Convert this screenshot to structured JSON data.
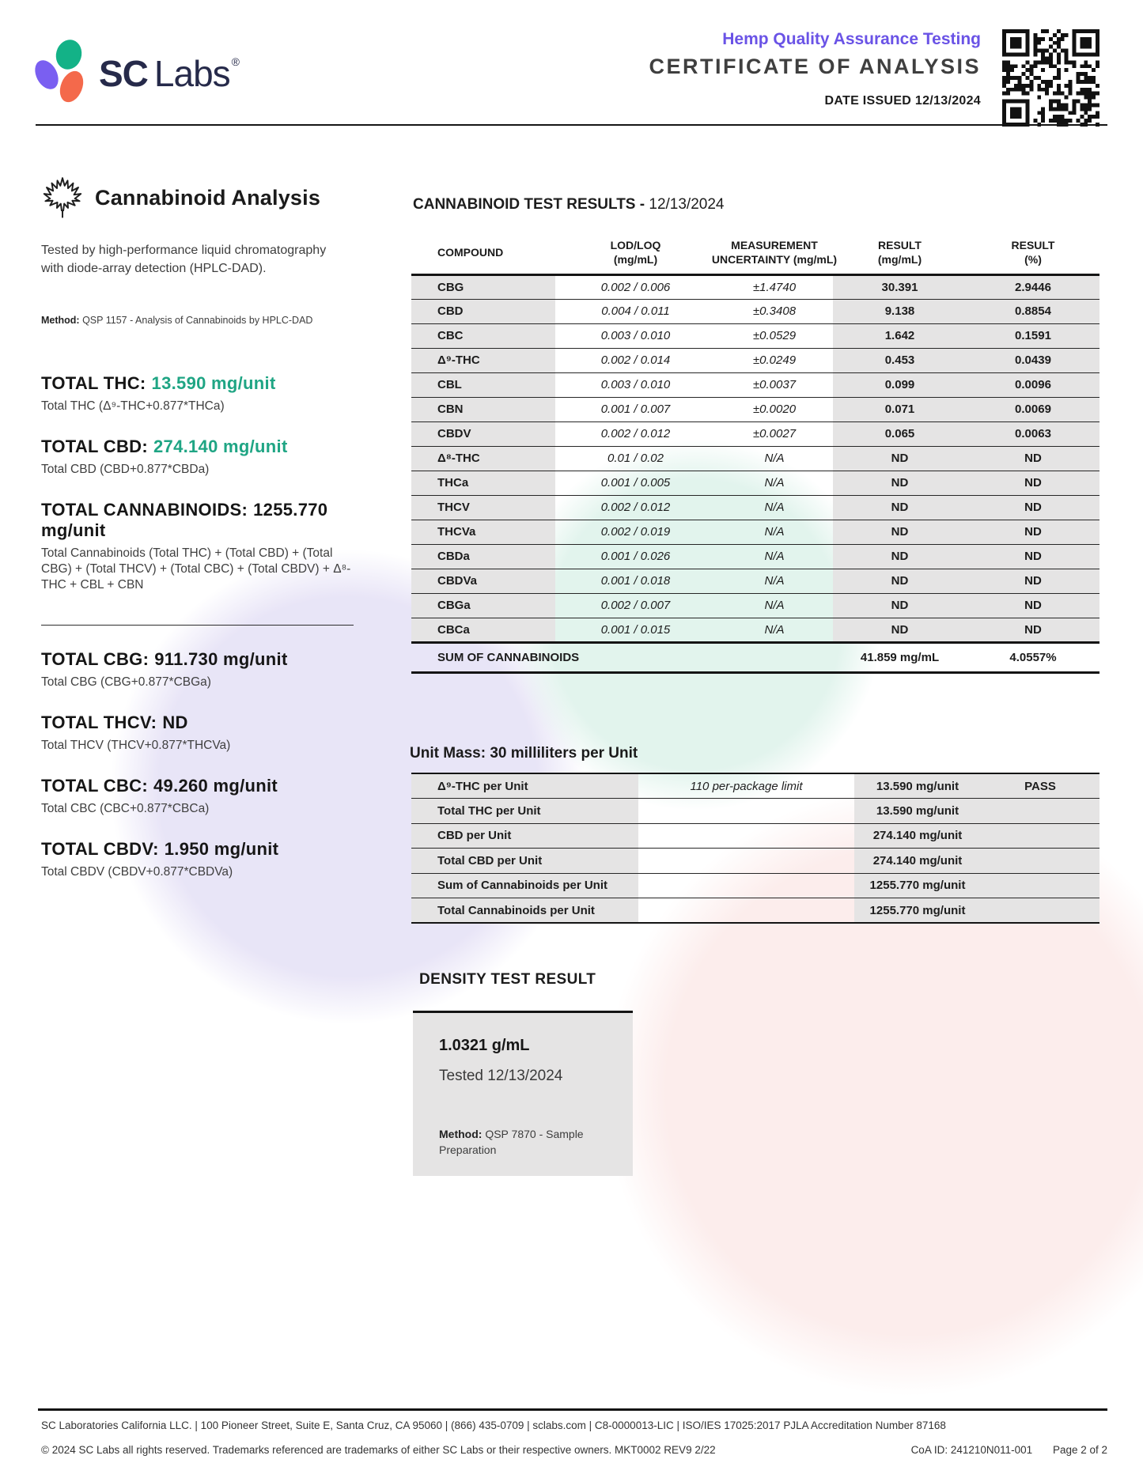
{
  "colors": {
    "accent_teal": "#1FA584",
    "header_purple": "#6A53E6",
    "logo_navy": "#262A4A",
    "logo_blob_purple": "#7A5FF1",
    "logo_blob_green": "#13B287",
    "logo_blob_coral": "#F4694B",
    "table_gray": "#E5E4E4"
  },
  "header": {
    "brand_sc": "SC",
    "brand_labs": "Labs",
    "brand_reg": "®",
    "program": "Hemp Quality Assurance Testing",
    "title": "CERTIFICATE OF ANALYSIS",
    "date_issued": "DATE ISSUED 12/13/2024"
  },
  "analysis": {
    "section_title": "Cannabinoid Analysis",
    "description": "Tested by high-performance liquid chromatography with diode-array detection (HPLC-DAD).",
    "method_label": "Method:",
    "method_text": " QSP 1157 - Analysis of Cannabinoids by HPLC-DAD",
    "totals_primary": [
      {
        "label": "TOTAL THC:",
        "value": "13.590 mg/unit",
        "accent": true,
        "formula": "Total THC (Δ⁹-THC+0.877*THCa)"
      },
      {
        "label": "TOTAL CBD:",
        "value": "274.140 mg/unit",
        "accent": true,
        "formula": "Total CBD (CBD+0.877*CBDa)"
      },
      {
        "label": "TOTAL CANNABINOIDS:",
        "value": "1255.770 mg/unit",
        "accent": false,
        "formula": "Total Cannabinoids (Total THC) + (Total CBD) + (Total CBG) + (Total THCV) + (Total CBC) + (Total CBDV) + Δ⁸-THC + CBL + CBN"
      }
    ],
    "totals_secondary": [
      {
        "label": "TOTAL CBG:",
        "value": "911.730 mg/unit",
        "accent": false,
        "formula": "Total CBG (CBG+0.877*CBGa)"
      },
      {
        "label": "TOTAL THCV:",
        "value": "ND",
        "accent": false,
        "formula": "Total THCV (THCV+0.877*THCVa)"
      },
      {
        "label": "TOTAL CBC:",
        "value": "49.260 mg/unit",
        "accent": false,
        "formula": "Total CBC (CBC+0.877*CBCa)"
      },
      {
        "label": "TOTAL CBDV:",
        "value": "1.950 mg/unit",
        "accent": false,
        "formula": "Total CBDV (CBDV+0.877*CBDVa)"
      }
    ]
  },
  "results": {
    "title": "CANNABINOID TEST RESULTS -",
    "date": " 12/13/2024",
    "columns": [
      "COMPOUND",
      "LOD/LOQ\n(mg/mL)",
      "MEASUREMENT\nUNCERTAINTY (mg/mL)",
      "RESULT\n(mg/mL)",
      "RESULT\n(%)"
    ],
    "rows": [
      {
        "compound": "CBG",
        "lod_loq": "0.002 / 0.006",
        "uncertainty": "±1.4740",
        "result_mg": "30.391",
        "result_pct": "2.9446"
      },
      {
        "compound": "CBD",
        "lod_loq": "0.004 / 0.011",
        "uncertainty": "±0.3408",
        "result_mg": "9.138",
        "result_pct": "0.8854"
      },
      {
        "compound": "CBC",
        "lod_loq": "0.003 / 0.010",
        "uncertainty": "±0.0529",
        "result_mg": "1.642",
        "result_pct": "0.1591"
      },
      {
        "compound": "Δ⁹-THC",
        "lod_loq": "0.002 / 0.014",
        "uncertainty": "±0.0249",
        "result_mg": "0.453",
        "result_pct": "0.0439"
      },
      {
        "compound": "CBL",
        "lod_loq": "0.003 / 0.010",
        "uncertainty": "±0.0037",
        "result_mg": "0.099",
        "result_pct": "0.0096"
      },
      {
        "compound": "CBN",
        "lod_loq": "0.001 / 0.007",
        "uncertainty": "±0.0020",
        "result_mg": "0.071",
        "result_pct": "0.0069"
      },
      {
        "compound": "CBDV",
        "lod_loq": "0.002 / 0.012",
        "uncertainty": "±0.0027",
        "result_mg": "0.065",
        "result_pct": "0.0063"
      },
      {
        "compound": "Δ⁸-THC",
        "lod_loq": "0.01 / 0.02",
        "uncertainty": "N/A",
        "result_mg": "ND",
        "result_pct": "ND"
      },
      {
        "compound": "THCa",
        "lod_loq": "0.001 / 0.005",
        "uncertainty": "N/A",
        "result_mg": "ND",
        "result_pct": "ND"
      },
      {
        "compound": "THCV",
        "lod_loq": "0.002 / 0.012",
        "uncertainty": "N/A",
        "result_mg": "ND",
        "result_pct": "ND"
      },
      {
        "compound": "THCVa",
        "lod_loq": "0.002 / 0.019",
        "uncertainty": "N/A",
        "result_mg": "ND",
        "result_pct": "ND"
      },
      {
        "compound": "CBDa",
        "lod_loq": "0.001 / 0.026",
        "uncertainty": "N/A",
        "result_mg": "ND",
        "result_pct": "ND"
      },
      {
        "compound": "CBDVa",
        "lod_loq": "0.001 / 0.018",
        "uncertainty": "N/A",
        "result_mg": "ND",
        "result_pct": "ND"
      },
      {
        "compound": "CBGa",
        "lod_loq": "0.002 / 0.007",
        "uncertainty": "N/A",
        "result_mg": "ND",
        "result_pct": "ND"
      },
      {
        "compound": "CBCa",
        "lod_loq": "0.001 / 0.015",
        "uncertainty": "N/A",
        "result_mg": "ND",
        "result_pct": "ND"
      }
    ],
    "sum": {
      "label": "SUM OF CANNABINOIDS",
      "result_mg": "41.859 mg/mL",
      "result_pct": "4.0557%"
    }
  },
  "unit_mass": {
    "heading": "Unit Mass: 30 milliliters per Unit",
    "rows": [
      {
        "label": "Δ⁹-THC per Unit",
        "limit": "110 per-package limit",
        "result": "13.590 mg/unit",
        "status": "PASS"
      },
      {
        "label": "Total THC per Unit",
        "limit": "",
        "result": "13.590 mg/unit",
        "status": ""
      },
      {
        "label": "CBD per Unit",
        "limit": "",
        "result": "274.140 mg/unit",
        "status": ""
      },
      {
        "label": "Total CBD per Unit",
        "limit": "",
        "result": "274.140 mg/unit",
        "status": ""
      },
      {
        "label": "Sum of Cannabinoids per Unit",
        "limit": "",
        "result": "1255.770 mg/unit",
        "status": ""
      },
      {
        "label": "Total Cannabinoids per Unit",
        "limit": "",
        "result": "1255.770 mg/unit",
        "status": ""
      }
    ]
  },
  "density": {
    "heading": "DENSITY TEST RESULT",
    "value": "1.0321 g/mL",
    "tested": "Tested 12/13/2024",
    "method_label": "Method:",
    "method_text": " QSP 7870 - Sample Preparation"
  },
  "footer": {
    "line1": "SC Laboratories California LLC. | 100 Pioneer Street, Suite E, Santa Cruz, CA 95060 | (866) 435-0709 | sclabs.com | C8-0000013-LIC | ISO/IES 17025:2017 PJLA Accreditation Number 87168",
    "line2": "© 2024 SC Labs all rights reserved. Trademarks referenced are trademarks of either SC Labs or their respective owners. MKT0002 REV9 2/22",
    "coa_id": "CoA ID: 241210N011-001",
    "page": "Page 2 of 2"
  }
}
